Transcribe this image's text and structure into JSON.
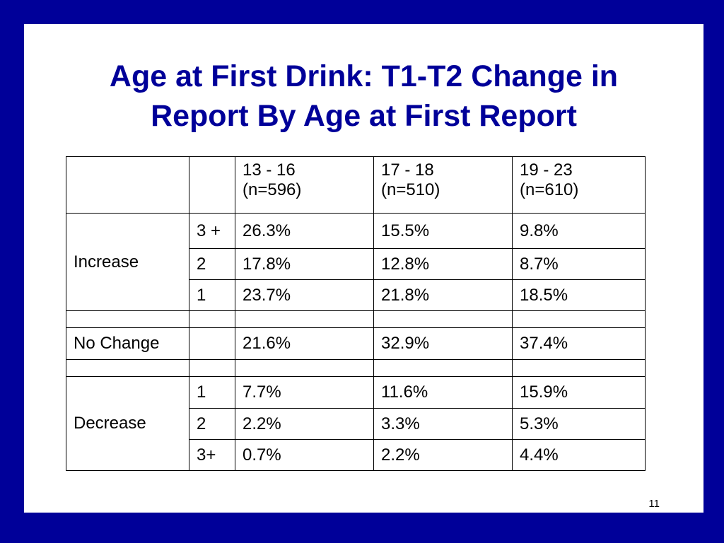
{
  "slide": {
    "title_line1": "Age at First Drink: T1-T2 Change in",
    "title_line2": "Report By Age at First Report",
    "page_number": "11"
  },
  "table": {
    "columns": [
      {
        "range": "13 - 16",
        "n": "(n=596)"
      },
      {
        "range": "17 - 18",
        "n": "(n=510)"
      },
      {
        "range": "19 - 23",
        "n": "(n=610)"
      }
    ],
    "increase": {
      "label": "Increase",
      "rows": [
        {
          "level": "3 +",
          "values": [
            "26.3%",
            "15.5%",
            "9.8%"
          ]
        },
        {
          "level": "2",
          "values": [
            "17.8%",
            "12.8%",
            "8.7%"
          ]
        },
        {
          "level": "1",
          "values": [
            "23.7%",
            "21.8%",
            "18.5%"
          ]
        }
      ]
    },
    "no_change": {
      "label": "No Change",
      "values": [
        "21.6%",
        "32.9%",
        "37.4%"
      ]
    },
    "decrease": {
      "label": "Decrease",
      "rows": [
        {
          "level": "1",
          "values": [
            "7.7%",
            "11.6%",
            "15.9%"
          ]
        },
        {
          "level": "2",
          "values": [
            "2.2%",
            "3.3%",
            "5.3%"
          ]
        },
        {
          "level": "3+",
          "values": [
            "0.7%",
            "2.2%",
            "4.4%"
          ]
        }
      ]
    }
  }
}
